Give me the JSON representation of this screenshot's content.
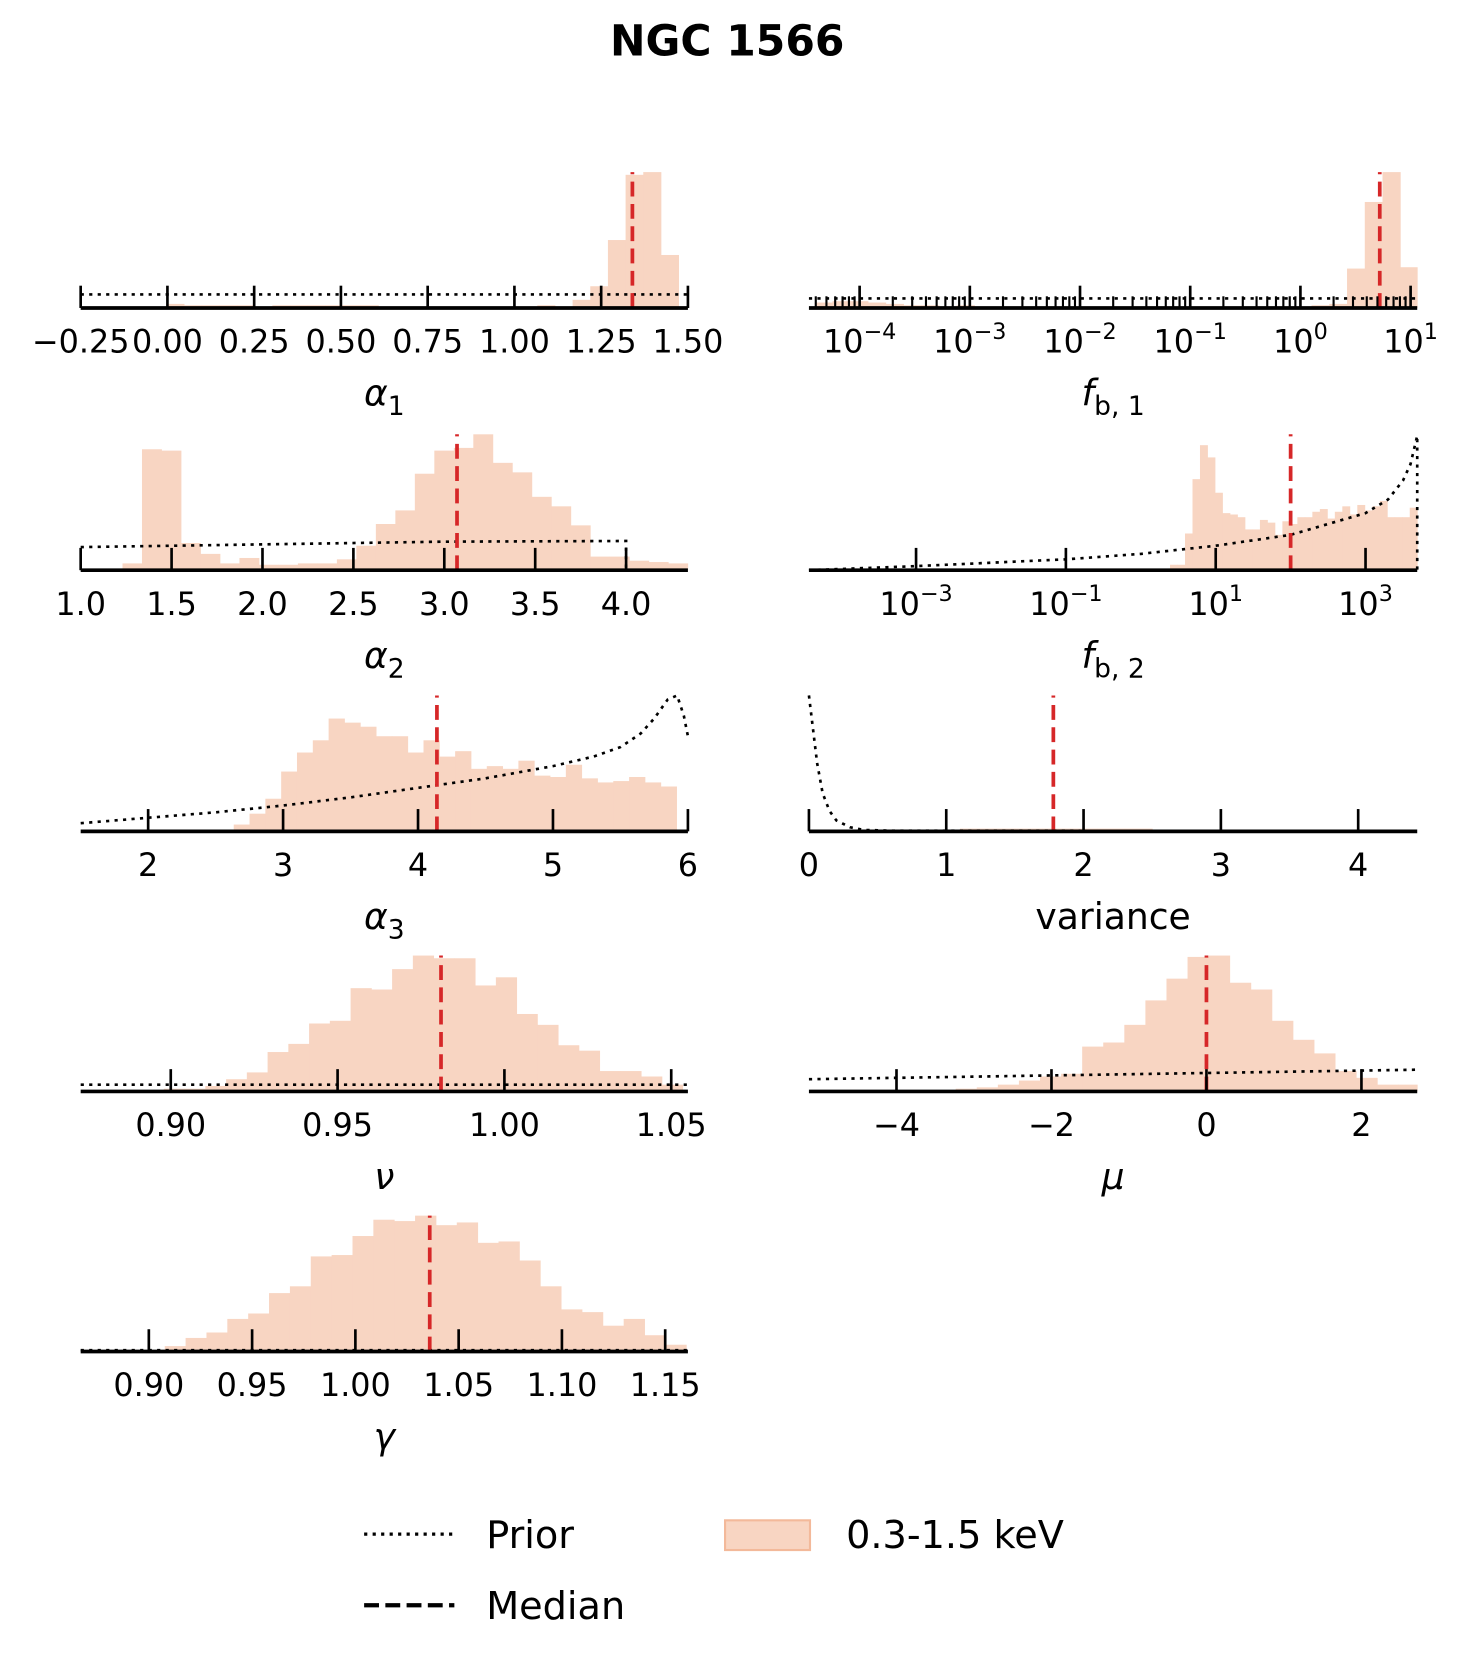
{
  "chart_data": {
    "type": "bar",
    "title": "NGC 1566",
    "colors": {
      "hist": "#f8d5c2",
      "hist_edge": "#f3b99a",
      "median": "#d62728",
      "prior": "#000000"
    },
    "legend": {
      "placement": "bottom-center",
      "entries": [
        {
          "label": "Prior",
          "style": "dotted"
        },
        {
          "label": "Median",
          "style": "dashed"
        },
        {
          "label": "0.3-1.5 keV",
          "style": "patch"
        }
      ]
    },
    "panels": [
      {
        "id": "alpha1",
        "xlabel": "α_1",
        "scale": "linear",
        "xlim": [
          -0.25,
          1.5
        ],
        "ticks": [
          -0.25,
          0,
          0.25,
          0.5,
          0.75,
          1.0,
          1.25,
          1.5
        ],
        "tick_labels": [
          "−0.25",
          "0.00",
          "0.25",
          "0.50",
          "0.75",
          "1.00",
          "1.25",
          "1.50"
        ],
        "hist": {
          "start": -0.003,
          "width": 0.0509,
          "heights": [
            0.03,
            0.02,
            0.02,
            0.02,
            0.02,
            0.01,
            0.02,
            0.02,
            0.02,
            0.02,
            0.02,
            0.02,
            0.01,
            0.01,
            0.01,
            0.01,
            0.01,
            0.01,
            0.01,
            0.01,
            0.01,
            0.02,
            0.01,
            0.06,
            0.16,
            0.5,
            0.98,
            1.0,
            0.39
          ]
        },
        "prior": [
          [
            -0.25,
            0.1
          ],
          [
            1.5,
            0.1
          ]
        ],
        "median": 1.34
      },
      {
        "id": "fb1",
        "xlabel": "f_b, 1",
        "scale": "log",
        "xlim": [
          -4.46,
          1.06
        ],
        "minor_ticks": true,
        "ticks": [
          -4,
          -3,
          -2,
          -1,
          0,
          1
        ],
        "tick_labels": [
          "10^−4",
          "10^−3",
          "10^−2",
          "10^−1",
          "10^0",
          "10^1"
        ],
        "hist": {
          "start": -4.407,
          "width": 0.161,
          "heights": [
            0.04,
            0.05,
            0.05,
            0.04,
            0.03,
            0.02,
            0.02,
            0.01,
            0.02,
            0.01,
            0.01,
            0.01,
            0.01,
            0.01,
            0.01,
            0.01,
            0.01,
            0.01,
            0.01,
            0.01,
            0.01,
            0.01,
            0.01,
            0.01,
            0.01,
            0.01,
            0.01,
            0.01,
            0.02,
            0.03,
            0.29,
            0.78,
            1.0,
            0.3
          ]
        },
        "prior": [
          [
            -4.46,
            0.07
          ],
          [
            1.06,
            0.07
          ]
        ],
        "median": 0.72
      },
      {
        "id": "alpha2",
        "xlabel": "α_2",
        "scale": "linear",
        "xlim": [
          1.0,
          4.34
        ],
        "ticks": [
          1.0,
          1.5,
          2.0,
          2.5,
          3.0,
          3.5,
          4.0
        ],
        "tick_labels": [
          "1.0",
          "1.5",
          "2.0",
          "2.5",
          "3.0",
          "3.5",
          "4.0"
        ],
        "hist": {
          "start": 1.23,
          "width": 0.1072,
          "heights": [
            0.05,
            0.89,
            0.88,
            0.2,
            0.12,
            0.05,
            0.09,
            0.04,
            0.04,
            0.05,
            0.05,
            0.08,
            0.18,
            0.34,
            0.44,
            0.71,
            0.88,
            0.9,
            1.0,
            0.79,
            0.72,
            0.54,
            0.47,
            0.33,
            0.1,
            0.1,
            0.07,
            0.06,
            0.05
          ]
        },
        "prior": [
          [
            1.0,
            0.17
          ],
          [
            2.0,
            0.19
          ],
          [
            3.0,
            0.21
          ],
          [
            4.0,
            0.215
          ],
          [
            4.0,
            0.0
          ]
        ],
        "median": 3.07
      },
      {
        "id": "fb2",
        "xlabel": "f_b, 2",
        "scale": "log",
        "xlim": [
          -4.43,
          3.69
        ],
        "ticks": [
          -3,
          -1,
          1,
          3
        ],
        "tick_labels": [
          "10^−3",
          "10^−1",
          "10^1",
          "10^3"
        ],
        "hist": {
          "start": 0.39,
          "width": 0.1,
          "heights": [
            0.04,
            0.04,
            0.27,
            0.67,
            0.92,
            0.83,
            0.57,
            0.42,
            0.41,
            0.39,
            0.3,
            0.3,
            0.37,
            0.35,
            0.26,
            0.36,
            0.34,
            0.39,
            0.39,
            0.43,
            0.45,
            0.38,
            0.43,
            0.47,
            0.41,
            0.48,
            0.44,
            0.47,
            0.51,
            0.39,
            0.39,
            0.39,
            0.46
          ]
        },
        "prior": [
          [
            -4.43,
            0.0
          ],
          [
            -3,
            0.03
          ],
          [
            -2,
            0.055
          ],
          [
            -1,
            0.08
          ],
          [
            0,
            0.12
          ],
          [
            1,
            0.18
          ],
          [
            2,
            0.26
          ],
          [
            2.5,
            0.34
          ],
          [
            3,
            0.42
          ],
          [
            3.3,
            0.52
          ],
          [
            3.5,
            0.66
          ],
          [
            3.6,
            0.78
          ],
          [
            3.69,
            0.99
          ],
          [
            3.69,
            0.0
          ]
        ],
        "median": 2.0
      },
      {
        "id": "alpha3",
        "xlabel": "α_3",
        "scale": "linear",
        "xlim": [
          1.5,
          6.0
        ],
        "ticks": [
          2,
          3,
          4,
          5,
          6
        ],
        "tick_labels": [
          "2",
          "3",
          "4",
          "5",
          "6"
        ],
        "hist": {
          "start": 2.517,
          "width": 0.1172,
          "heights": [
            0.01,
            0.05,
            0.13,
            0.24,
            0.44,
            0.58,
            0.67,
            0.83,
            0.8,
            0.77,
            0.7,
            0.7,
            0.58,
            0.67,
            0.55,
            0.59,
            0.46,
            0.48,
            0.46,
            0.52,
            0.41,
            0.4,
            0.49,
            0.39,
            0.36,
            0.37,
            0.4,
            0.36,
            0.33
          ]
        },
        "prior": [
          [
            1.5,
            0.06
          ],
          [
            2,
            0.1
          ],
          [
            2.5,
            0.14
          ],
          [
            3,
            0.19
          ],
          [
            3.5,
            0.25
          ],
          [
            4,
            0.32
          ],
          [
            4.5,
            0.39
          ],
          [
            5,
            0.48
          ],
          [
            5.3,
            0.55
          ],
          [
            5.5,
            0.62
          ],
          [
            5.65,
            0.72
          ],
          [
            5.75,
            0.83
          ],
          [
            5.85,
            0.97
          ],
          [
            5.92,
            1.0
          ],
          [
            5.97,
            0.85
          ],
          [
            6.0,
            0.7
          ]
        ],
        "median": 4.14
      },
      {
        "id": "variance",
        "xlabel": "variance",
        "scale": "linear",
        "xlim": [
          0,
          4.43
        ],
        "ticks": [
          0,
          1,
          2,
          3,
          4
        ],
        "tick_labels": [
          "0",
          "1",
          "2",
          "3",
          "4"
        ],
        "hist": {
          "start": 0.9,
          "width": 0.2,
          "heights": [
            0.01,
            0.02,
            0.02,
            0.02,
            0.02,
            0.02,
            0.02,
            0.02
          ]
        },
        "prior": [
          [
            0,
            1.0
          ],
          [
            0.03,
            0.75
          ],
          [
            0.06,
            0.5
          ],
          [
            0.1,
            0.28
          ],
          [
            0.15,
            0.15
          ],
          [
            0.2,
            0.08
          ],
          [
            0.3,
            0.03
          ],
          [
            0.4,
            0.01
          ],
          [
            0.6,
            0.005
          ],
          [
            4.43,
            0.003
          ]
        ],
        "median": 1.78
      },
      {
        "id": "nu",
        "xlabel": "ν",
        "scale": "linear",
        "xlim": [
          0.873,
          1.055
        ],
        "ticks": [
          0.9,
          0.95,
          1.0,
          1.05
        ],
        "tick_labels": [
          "0.90",
          "0.95",
          "1.00",
          "1.05"
        ],
        "hist": {
          "start": 0.8917,
          "width": 0.00622,
          "heights": [
            0.01,
            0.02,
            0.02,
            0.04,
            0.09,
            0.14,
            0.29,
            0.35,
            0.5,
            0.52,
            0.76,
            0.75,
            0.9,
            1.0,
            0.98,
            0.98,
            0.78,
            0.84,
            0.57,
            0.49,
            0.34,
            0.3,
            0.15,
            0.15,
            0.11,
            0.05
          ]
        },
        "prior": [
          [
            0.873,
            0.05
          ],
          [
            1.055,
            0.05
          ]
        ],
        "median": 0.981
      },
      {
        "id": "mu",
        "xlabel": "μ",
        "scale": "linear",
        "xlim": [
          -5.13,
          2.72
        ],
        "ticks": [
          -4,
          -2,
          0,
          2
        ],
        "tick_labels": [
          "−4",
          "−2",
          "0",
          "2"
        ],
        "hist": {
          "start": -3.78,
          "width": 0.272,
          "heights": [
            0.01,
            0.01,
            0.02,
            0.03,
            0.05,
            0.08,
            0.11,
            0.13,
            0.33,
            0.36,
            0.49,
            0.67,
            0.83,
            0.99,
            1.0,
            0.8,
            0.75,
            0.52,
            0.38,
            0.28,
            0.15,
            0.1,
            0.05,
            0.05
          ]
        },
        "prior": [
          [
            -5.13,
            0.09
          ],
          [
            2.72,
            0.16
          ]
        ],
        "median": 0.0
      },
      {
        "id": "gamma",
        "xlabel": "γ",
        "scale": "linear",
        "xlim": [
          0.867,
          1.161
        ],
        "ticks": [
          0.9,
          0.95,
          1.0,
          1.05,
          1.1,
          1.15
        ],
        "tick_labels": [
          "0.90",
          "0.95",
          "1.00",
          "1.05",
          "1.10",
          "1.15"
        ],
        "hist": {
          "start": 0.9077,
          "width": 0.0101,
          "heights": [
            0.04,
            0.1,
            0.14,
            0.24,
            0.28,
            0.43,
            0.48,
            0.7,
            0.71,
            0.85,
            0.97,
            0.96,
            1.0,
            0.93,
            0.95,
            0.8,
            0.81,
            0.67,
            0.48,
            0.31,
            0.29,
            0.19,
            0.24,
            0.12,
            0.05
          ]
        },
        "prior": [
          [
            0.867,
            0.01
          ],
          [
            1.161,
            0.01
          ]
        ],
        "median": 1.036
      }
    ]
  }
}
